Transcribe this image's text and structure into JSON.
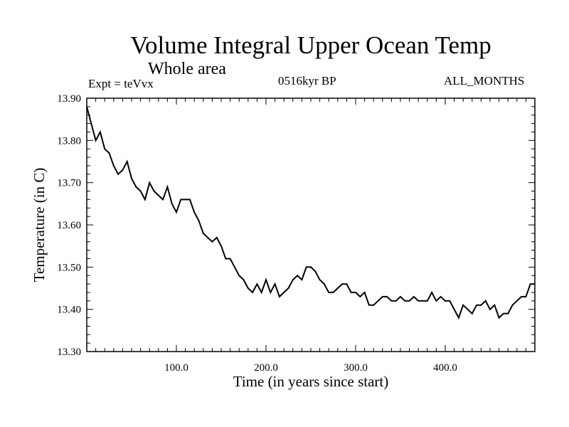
{
  "header": {
    "title": "Volume Integral Upper Ocean Temp",
    "subtitle": "Whole area",
    "expt": "Expt = teVvx",
    "period": "0516kyr BP",
    "months": "ALL_MONTHS"
  },
  "chart_data": {
    "type": "line",
    "title": "Volume Integral Upper Ocean Temp",
    "subtitle": "Whole area",
    "xlabel": "Time (in years since start)",
    "ylabel": "Temperature (in C)",
    "xlim": [
      0,
      500
    ],
    "ylim": [
      13.3,
      13.9
    ],
    "xticks": [
      100,
      200,
      300,
      400
    ],
    "xtick_labels": [
      "100.0",
      "200.0",
      "300.0",
      "400.0"
    ],
    "yticks": [
      13.3,
      13.4,
      13.5,
      13.6,
      13.7,
      13.8,
      13.9
    ],
    "ytick_labels": [
      "13.30",
      "13.40",
      "13.50",
      "13.60",
      "13.70",
      "13.80",
      "13.90"
    ],
    "grid": false,
    "series": [
      {
        "x": [
          0,
          5,
          10,
          15,
          20,
          25,
          30,
          35,
          40,
          45,
          50,
          55,
          60,
          65,
          70,
          75,
          80,
          85,
          90,
          95,
          100,
          105,
          110,
          115,
          120,
          125,
          130,
          135,
          140,
          145,
          150,
          155,
          160,
          165,
          170,
          175,
          180,
          185,
          190,
          195,
          200,
          205,
          210,
          215,
          220,
          225,
          230,
          235,
          240,
          245,
          250,
          255,
          260,
          265,
          270,
          275,
          280,
          285,
          290,
          295,
          300,
          305,
          310,
          315,
          320,
          325,
          330,
          335,
          340,
          345,
          350,
          355,
          360,
          365,
          370,
          375,
          380,
          385,
          390,
          395,
          400,
          405,
          410,
          415,
          420,
          425,
          430,
          435,
          440,
          445,
          450,
          455,
          460,
          465,
          470,
          475,
          480,
          485,
          490,
          495,
          500
        ],
        "values": [
          13.88,
          13.84,
          13.8,
          13.82,
          13.78,
          13.77,
          13.74,
          13.72,
          13.73,
          13.75,
          13.71,
          13.69,
          13.68,
          13.66,
          13.7,
          13.68,
          13.67,
          13.66,
          13.69,
          13.65,
          13.63,
          13.66,
          13.66,
          13.66,
          13.63,
          13.61,
          13.58,
          13.57,
          13.56,
          13.57,
          13.55,
          13.52,
          13.52,
          13.5,
          13.48,
          13.47,
          13.45,
          13.44,
          13.46,
          13.44,
          13.47,
          13.44,
          13.46,
          13.43,
          13.44,
          13.45,
          13.47,
          13.48,
          13.47,
          13.5,
          13.5,
          13.49,
          13.47,
          13.46,
          13.44,
          13.44,
          13.45,
          13.46,
          13.46,
          13.44,
          13.44,
          13.43,
          13.44,
          13.41,
          13.41,
          13.42,
          13.43,
          13.43,
          13.42,
          13.42,
          13.43,
          13.42,
          13.42,
          13.43,
          13.42,
          13.42,
          13.42,
          13.44,
          13.42,
          13.43,
          13.42,
          13.42,
          13.4,
          13.38,
          13.41,
          13.4,
          13.39,
          13.41,
          13.41,
          13.42,
          13.4,
          13.41,
          13.38,
          13.39,
          13.39,
          13.41,
          13.42,
          13.43,
          13.43,
          13.46,
          13.46
        ]
      }
    ]
  }
}
